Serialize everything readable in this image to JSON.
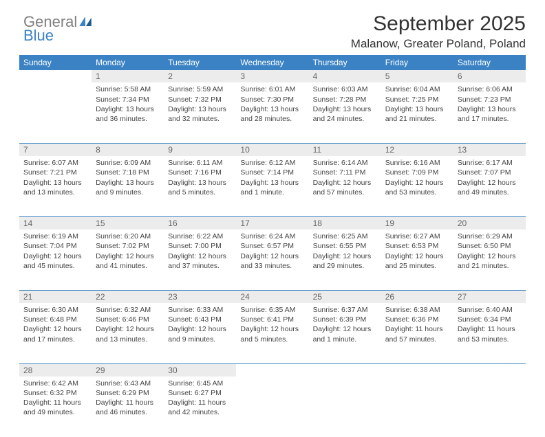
{
  "logo": {
    "word1": "General",
    "word2": "Blue"
  },
  "header": {
    "month": "September 2025",
    "location": "Malanow, Greater Poland, Poland"
  },
  "colors": {
    "header_bg": "#3b82c4",
    "header_fg": "#ffffff",
    "rule": "#3b82c4",
    "daynum_bg": "#ececec",
    "text": "#444444"
  },
  "dayNames": [
    "Sunday",
    "Monday",
    "Tuesday",
    "Wednesday",
    "Thursday",
    "Friday",
    "Saturday"
  ],
  "weeks": [
    [
      null,
      {
        "n": "1",
        "sunrise": "5:58 AM",
        "sunset": "7:34 PM",
        "daylight": "13 hours and 36 minutes."
      },
      {
        "n": "2",
        "sunrise": "5:59 AM",
        "sunset": "7:32 PM",
        "daylight": "13 hours and 32 minutes."
      },
      {
        "n": "3",
        "sunrise": "6:01 AM",
        "sunset": "7:30 PM",
        "daylight": "13 hours and 28 minutes."
      },
      {
        "n": "4",
        "sunrise": "6:03 AM",
        "sunset": "7:28 PM",
        "daylight": "13 hours and 24 minutes."
      },
      {
        "n": "5",
        "sunrise": "6:04 AM",
        "sunset": "7:25 PM",
        "daylight": "13 hours and 21 minutes."
      },
      {
        "n": "6",
        "sunrise": "6:06 AM",
        "sunset": "7:23 PM",
        "daylight": "13 hours and 17 minutes."
      }
    ],
    [
      {
        "n": "7",
        "sunrise": "6:07 AM",
        "sunset": "7:21 PM",
        "daylight": "13 hours and 13 minutes."
      },
      {
        "n": "8",
        "sunrise": "6:09 AM",
        "sunset": "7:18 PM",
        "daylight": "13 hours and 9 minutes."
      },
      {
        "n": "9",
        "sunrise": "6:11 AM",
        "sunset": "7:16 PM",
        "daylight": "13 hours and 5 minutes."
      },
      {
        "n": "10",
        "sunrise": "6:12 AM",
        "sunset": "7:14 PM",
        "daylight": "13 hours and 1 minute."
      },
      {
        "n": "11",
        "sunrise": "6:14 AM",
        "sunset": "7:11 PM",
        "daylight": "12 hours and 57 minutes."
      },
      {
        "n": "12",
        "sunrise": "6:16 AM",
        "sunset": "7:09 PM",
        "daylight": "12 hours and 53 minutes."
      },
      {
        "n": "13",
        "sunrise": "6:17 AM",
        "sunset": "7:07 PM",
        "daylight": "12 hours and 49 minutes."
      }
    ],
    [
      {
        "n": "14",
        "sunrise": "6:19 AM",
        "sunset": "7:04 PM",
        "daylight": "12 hours and 45 minutes."
      },
      {
        "n": "15",
        "sunrise": "6:20 AM",
        "sunset": "7:02 PM",
        "daylight": "12 hours and 41 minutes."
      },
      {
        "n": "16",
        "sunrise": "6:22 AM",
        "sunset": "7:00 PM",
        "daylight": "12 hours and 37 minutes."
      },
      {
        "n": "17",
        "sunrise": "6:24 AM",
        "sunset": "6:57 PM",
        "daylight": "12 hours and 33 minutes."
      },
      {
        "n": "18",
        "sunrise": "6:25 AM",
        "sunset": "6:55 PM",
        "daylight": "12 hours and 29 minutes."
      },
      {
        "n": "19",
        "sunrise": "6:27 AM",
        "sunset": "6:53 PM",
        "daylight": "12 hours and 25 minutes."
      },
      {
        "n": "20",
        "sunrise": "6:29 AM",
        "sunset": "6:50 PM",
        "daylight": "12 hours and 21 minutes."
      }
    ],
    [
      {
        "n": "21",
        "sunrise": "6:30 AM",
        "sunset": "6:48 PM",
        "daylight": "12 hours and 17 minutes."
      },
      {
        "n": "22",
        "sunrise": "6:32 AM",
        "sunset": "6:46 PM",
        "daylight": "12 hours and 13 minutes."
      },
      {
        "n": "23",
        "sunrise": "6:33 AM",
        "sunset": "6:43 PM",
        "daylight": "12 hours and 9 minutes."
      },
      {
        "n": "24",
        "sunrise": "6:35 AM",
        "sunset": "6:41 PM",
        "daylight": "12 hours and 5 minutes."
      },
      {
        "n": "25",
        "sunrise": "6:37 AM",
        "sunset": "6:39 PM",
        "daylight": "12 hours and 1 minute."
      },
      {
        "n": "26",
        "sunrise": "6:38 AM",
        "sunset": "6:36 PM",
        "daylight": "11 hours and 57 minutes."
      },
      {
        "n": "27",
        "sunrise": "6:40 AM",
        "sunset": "6:34 PM",
        "daylight": "11 hours and 53 minutes."
      }
    ],
    [
      {
        "n": "28",
        "sunrise": "6:42 AM",
        "sunset": "6:32 PM",
        "daylight": "11 hours and 49 minutes."
      },
      {
        "n": "29",
        "sunrise": "6:43 AM",
        "sunset": "6:29 PM",
        "daylight": "11 hours and 46 minutes."
      },
      {
        "n": "30",
        "sunrise": "6:45 AM",
        "sunset": "6:27 PM",
        "daylight": "11 hours and 42 minutes."
      },
      null,
      null,
      null,
      null
    ]
  ],
  "labels": {
    "sunrise": "Sunrise:",
    "sunset": "Sunset:",
    "daylight": "Daylight:"
  }
}
